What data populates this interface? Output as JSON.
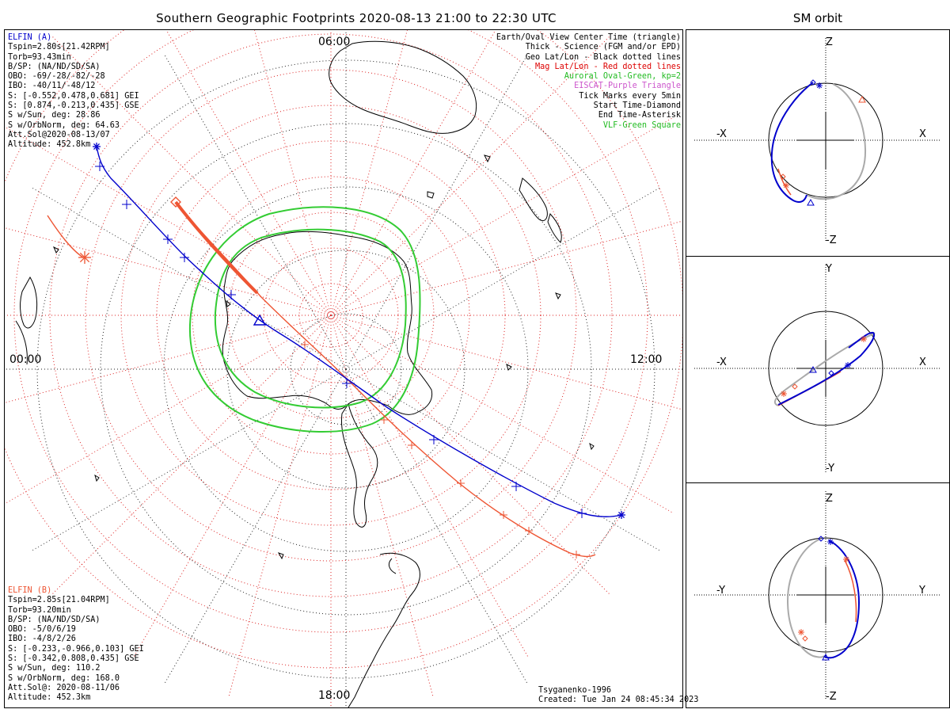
{
  "title": "Southern Geographic Footprints 2020-08-13 21:00 to 22:30 UTC",
  "sm_title": "SM orbit",
  "elfin_a": {
    "header": "ELFIN (A)",
    "lines": [
      "Tspin=2.80s[21.42RPM]",
      "Torb=93.43min",
      "B/SP: (NA/ND/SD/SA)",
      "OBO: -69/-28/-82/-28",
      "IBO: -40/11/-48/12",
      "S: [-0.552,0.478,0.681] GEI",
      "S: [0.874,-0.213,0.435] GSE",
      "S w/Sun, deg: 28.86",
      "S w/OrbNorm, deg: 64.63",
      "Att.Sol@2020-08-13/07",
      "Altitude: 452.8km"
    ]
  },
  "elfin_b": {
    "header": "ELFIN (B)",
    "lines": [
      "Tspin=2.85s[21.04RPM]",
      "Torb=93.20min",
      "B/SP: (NA/ND/SD/SA)",
      "OBO: -5/0/6/19",
      "IBO: -4/8/2/26",
      "S: [-0.233,-0.966,0.103] GEI",
      "S: [-0.342,0.808,0.435] GSE",
      "S w/Sun, deg: 110.2",
      "S w/OrbNorm, deg: 168.0",
      "Att.Sol@: 2020-08-11/06",
      "Altitude: 452.3km"
    ]
  },
  "legend": [
    {
      "text": "Earth/Oval View Center Time (triangle)",
      "color": "#000000"
    },
    {
      "text": "Thick - Science (FGM and/or EPD)",
      "color": "#000000"
    },
    {
      "text": "Geo Lat/Lon - Black dotted lines",
      "color": "#000000"
    },
    {
      "text": "Mag Lat/Lon - Red dotted lines",
      "color": "#dd0000"
    },
    {
      "text": "Auroral Oval-Green, kp=2",
      "color": "#22bb22"
    },
    {
      "text": "EISCAT-Purple Triangle",
      "color": "#cc55cc"
    },
    {
      "text": "Tick Marks every 5min",
      "color": "#000000"
    },
    {
      "text": "Start Time-Diamond",
      "color": "#000000"
    },
    {
      "text": "End Time-Asterisk",
      "color": "#000000"
    },
    {
      "text": "VLF-Green Square",
      "color": "#22bb22"
    }
  ],
  "credits": [
    "Tsyganenko-1996",
    "Created: Tue Jan 24 08:45:34 2023"
  ],
  "mlt_labels": {
    "top": "06:00",
    "left": "00:00",
    "right": "12:00",
    "bottom": "18:00"
  },
  "colors": {
    "elfin_a": "#0000cc",
    "elfin_b": "#ee5533",
    "oval": "#33cc33",
    "mag_grid": "#dd2222",
    "sm_other": "#aaaaaa"
  },
  "chart_data": [
    {
      "type": "map",
      "projection": "south polar",
      "series": [
        {
          "name": "ELFIN (A)",
          "color": "#0000cc"
        },
        {
          "name": "ELFIN (B)",
          "color": "#ee5533"
        }
      ]
    },
    {
      "type": "orbit-panels",
      "panels": [
        {
          "x_neg": "-X",
          "x_pos": "X",
          "y_pos": "Z",
          "y_neg": "-Z"
        },
        {
          "x_neg": "-X",
          "x_pos": "X",
          "y_pos": "Y",
          "y_neg": "-Y"
        },
        {
          "x_neg": "-Y",
          "x_pos": "Y",
          "y_pos": "Z",
          "y_neg": "-Z"
        }
      ]
    }
  ]
}
